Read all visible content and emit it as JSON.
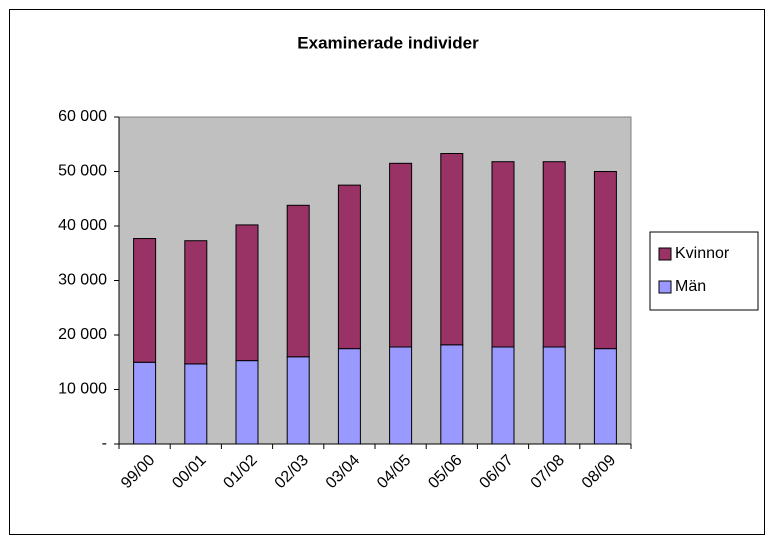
{
  "chart_data": {
    "type": "stacked_bar",
    "title": "Examinerade individer",
    "categories": [
      "99/00",
      "00/01",
      "01/02",
      "02/03",
      "03/04",
      "04/05",
      "05/06",
      "06/07",
      "07/08",
      "08/09"
    ],
    "series": [
      {
        "name": "Män",
        "color": "#9999ff",
        "values": [
          15000,
          14700,
          15300,
          16000,
          17500,
          17800,
          18200,
          17800,
          17800,
          17500
        ]
      },
      {
        "name": "Kvinnor",
        "color": "#993366",
        "values": [
          22700,
          22600,
          24900,
          27800,
          30000,
          33700,
          35100,
          34000,
          34000,
          32500
        ]
      }
    ],
    "ylim": [
      0,
      60000
    ],
    "yticks": [
      {
        "value": 0,
        "label": "-"
      },
      {
        "value": 10000,
        "label": "10 000"
      },
      {
        "value": 20000,
        "label": "20 000"
      },
      {
        "value": 30000,
        "label": "30 000"
      },
      {
        "value": 40000,
        "label": "40 000"
      },
      {
        "value": 50000,
        "label": "50 000"
      },
      {
        "value": 60000,
        "label": "60 000"
      }
    ],
    "plot_background": "#c0c0c0",
    "grid": false,
    "legend": "right"
  }
}
